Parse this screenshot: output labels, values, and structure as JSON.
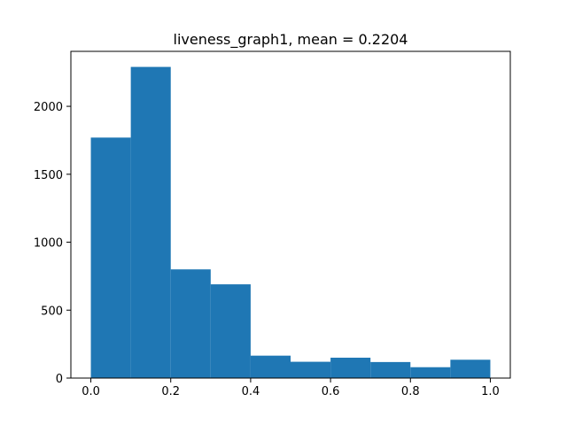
{
  "chart_data": {
    "type": "bar",
    "subtype": "histogram",
    "title": "liveness_graph1, mean = 0.2204",
    "xlabel": "",
    "ylabel": "",
    "bins": [
      {
        "start": 0.0,
        "end": 0.1,
        "count": 1770
      },
      {
        "start": 0.1,
        "end": 0.2,
        "count": 2290
      },
      {
        "start": 0.2,
        "end": 0.3,
        "count": 800
      },
      {
        "start": 0.3,
        "end": 0.4,
        "count": 690
      },
      {
        "start": 0.4,
        "end": 0.5,
        "count": 165
      },
      {
        "start": 0.5,
        "end": 0.6,
        "count": 120
      },
      {
        "start": 0.6,
        "end": 0.7,
        "count": 150
      },
      {
        "start": 0.7,
        "end": 0.8,
        "count": 118
      },
      {
        "start": 0.8,
        "end": 0.9,
        "count": 80
      },
      {
        "start": 0.9,
        "end": 1.0,
        "count": 135
      }
    ],
    "xlim": [
      -0.05,
      1.05
    ],
    "ylim": [
      0,
      2404.5
    ],
    "xticks": [
      0.0,
      0.2,
      0.4,
      0.6,
      0.8,
      1.0
    ],
    "xtick_labels": [
      "0.0",
      "0.2",
      "0.4",
      "0.6",
      "0.8",
      "1.0"
    ],
    "yticks": [
      0,
      500,
      1000,
      1500,
      2000
    ],
    "ytick_labels": [
      "0",
      "500",
      "1000",
      "1500",
      "2000"
    ],
    "grid": false,
    "legend": "none",
    "bar_color": "#1f77b4"
  }
}
